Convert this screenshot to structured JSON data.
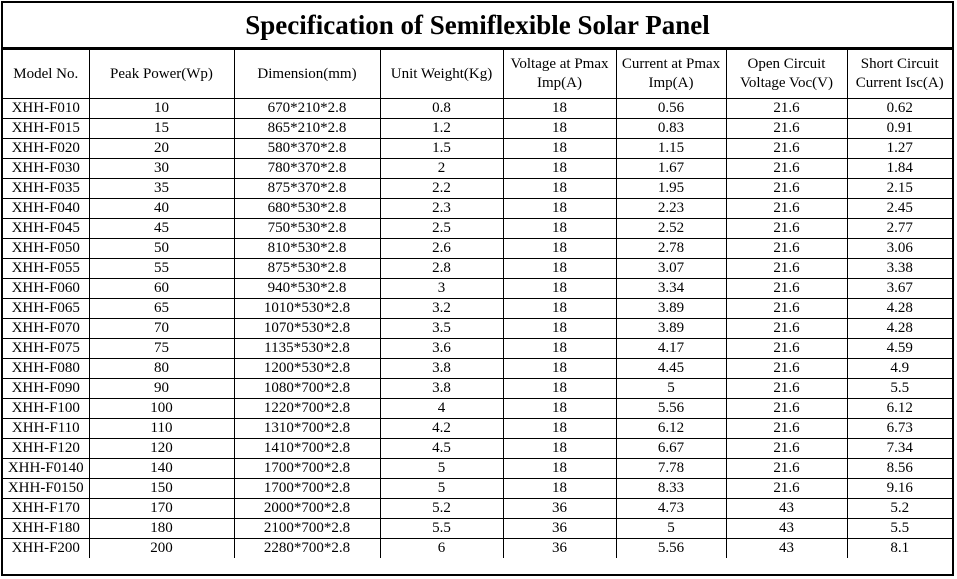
{
  "title": "Specification of Semiflexible Solar Panel",
  "columns": [
    "Model No.",
    "Peak Power(Wp)",
    "Dimension(mm)",
    "Unit Weight(Kg)",
    "Voltage at Pmax Imp(A)",
    "Current at Pmax Imp(A)",
    "Open Circuit Voltage Voc(V)",
    "Short Circuit Current Isc(A)"
  ],
  "rows": [
    [
      "XHH-F010",
      "10",
      "670*210*2.8",
      "0.8",
      "18",
      "0.56",
      "21.6",
      "0.62"
    ],
    [
      "XHH-F015",
      "15",
      "865*210*2.8",
      "1.2",
      "18",
      "0.83",
      "21.6",
      "0.91"
    ],
    [
      "XHH-F020",
      "20",
      "580*370*2.8",
      "1.5",
      "18",
      "1.15",
      "21.6",
      "1.27"
    ],
    [
      "XHH-F030",
      "30",
      "780*370*2.8",
      "2",
      "18",
      "1.67",
      "21.6",
      "1.84"
    ],
    [
      "XHH-F035",
      "35",
      "875*370*2.8",
      "2.2",
      "18",
      "1.95",
      "21.6",
      "2.15"
    ],
    [
      "XHH-F040",
      "40",
      "680*530*2.8",
      "2.3",
      "18",
      "2.23",
      "21.6",
      "2.45"
    ],
    [
      "XHH-F045",
      "45",
      "750*530*2.8",
      "2.5",
      "18",
      "2.52",
      "21.6",
      "2.77"
    ],
    [
      "XHH-F050",
      "50",
      "810*530*2.8",
      "2.6",
      "18",
      "2.78",
      "21.6",
      "3.06"
    ],
    [
      "XHH-F055",
      "55",
      "875*530*2.8",
      "2.8",
      "18",
      "3.07",
      "21.6",
      "3.38"
    ],
    [
      "XHH-F060",
      "60",
      "940*530*2.8",
      "3",
      "18",
      "3.34",
      "21.6",
      "3.67"
    ],
    [
      "XHH-F065",
      "65",
      "1010*530*2.8",
      "3.2",
      "18",
      "3.89",
      "21.6",
      "4.28"
    ],
    [
      "XHH-F070",
      "70",
      "1070*530*2.8",
      "3.5",
      "18",
      "3.89",
      "21.6",
      "4.28"
    ],
    [
      "XHH-F075",
      "75",
      "1135*530*2.8",
      "3.6",
      "18",
      "4.17",
      "21.6",
      "4.59"
    ],
    [
      "XHH-F080",
      "80",
      "1200*530*2.8",
      "3.8",
      "18",
      "4.45",
      "21.6",
      "4.9"
    ],
    [
      "XHH-F090",
      "90",
      "1080*700*2.8",
      "3.8",
      "18",
      "5",
      "21.6",
      "5.5"
    ],
    [
      "XHH-F100",
      "100",
      "1220*700*2.8",
      "4",
      "18",
      "5.56",
      "21.6",
      "6.12"
    ],
    [
      "XHH-F110",
      "110",
      "1310*700*2.8",
      "4.2",
      "18",
      "6.12",
      "21.6",
      "6.73"
    ],
    [
      "XHH-F120",
      "120",
      "1410*700*2.8",
      "4.5",
      "18",
      "6.67",
      "21.6",
      "7.34"
    ],
    [
      "XHH-F0140",
      "140",
      "1700*700*2.8",
      "5",
      "18",
      "7.78",
      "21.6",
      "8.56"
    ],
    [
      "XHH-F0150",
      "150",
      "1700*700*2.8",
      "5",
      "18",
      "8.33",
      "21.6",
      "9.16"
    ],
    [
      "XHH-F170",
      "170",
      "2000*700*2.8",
      "5.2",
      "36",
      "4.73",
      "43",
      "5.2"
    ],
    [
      "XHH-F180",
      "180",
      "2100*700*2.8",
      "5.5",
      "36",
      "5",
      "43",
      "5.5"
    ],
    [
      "XHH-F200",
      "200",
      "2280*700*2.8",
      "6",
      "36",
      "5.56",
      "43",
      "8.1"
    ]
  ]
}
